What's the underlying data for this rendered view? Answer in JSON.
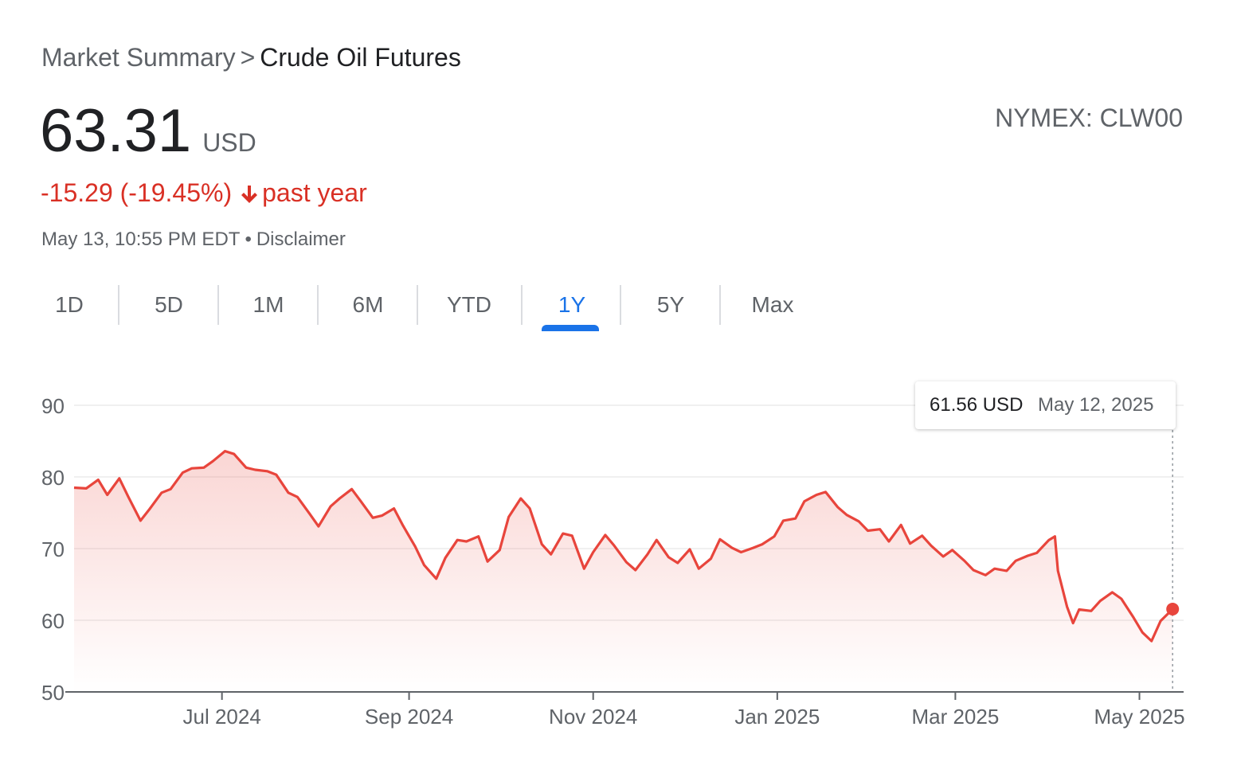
{
  "breadcrumb": {
    "root": "Market Summary",
    "separator": ">",
    "current": "Crude Oil Futures"
  },
  "quote": {
    "price": "63.31",
    "currency": "USD",
    "ticker": "NYMEX: CLW00",
    "change": "-15.29 (-19.45%)",
    "change_period": "past year",
    "change_direction_icon": "arrow-down-icon",
    "timestamp": "May 13, 10:55 PM EDT",
    "separator": "•",
    "disclaimer": "Disclaimer"
  },
  "tabs": [
    {
      "label": "1D",
      "active": false
    },
    {
      "label": "5D",
      "active": false
    },
    {
      "label": "1M",
      "active": false
    },
    {
      "label": "6M",
      "active": false
    },
    {
      "label": "YTD",
      "active": false
    },
    {
      "label": "1Y",
      "active": true
    },
    {
      "label": "5Y",
      "active": false
    },
    {
      "label": "Max",
      "active": false
    }
  ],
  "tooltip": {
    "value": "61.56 USD",
    "date": "May 12, 2025"
  },
  "colors": {
    "line": "#e8453c",
    "negative": "#d93025",
    "accent": "#1a73e8",
    "text_secondary": "#5f6368"
  },
  "chart_data": {
    "type": "area",
    "ylim": [
      50,
      90
    ],
    "yticks": [
      50,
      60,
      70,
      80,
      90
    ],
    "x_tick_labels": [
      "Jul 2024",
      "Sep 2024",
      "Nov 2024",
      "Jan 2025",
      "Mar 2025",
      "May 2025"
    ],
    "x_tick_dates": [
      "2024-07-01",
      "2024-09-01",
      "2024-11-01",
      "2025-01-01",
      "2025-03-01",
      "2025-05-01"
    ],
    "x_range": [
      "2024-05-13",
      "2025-05-13"
    ],
    "grid": true,
    "series": [
      {
        "points": [
          [
            "2024-05-13",
            78.5
          ],
          [
            "2024-05-17",
            78.4
          ],
          [
            "2024-05-21",
            79.6
          ],
          [
            "2024-05-24",
            77.5
          ],
          [
            "2024-05-28",
            79.8
          ],
          [
            "2024-05-31",
            77.2
          ],
          [
            "2024-06-04",
            73.9
          ],
          [
            "2024-06-07",
            75.5
          ],
          [
            "2024-06-11",
            77.8
          ],
          [
            "2024-06-14",
            78.3
          ],
          [
            "2024-06-18",
            80.6
          ],
          [
            "2024-06-21",
            81.2
          ],
          [
            "2024-06-25",
            81.3
          ],
          [
            "2024-06-28",
            82.2
          ],
          [
            "2024-07-02",
            83.6
          ],
          [
            "2024-07-05",
            83.2
          ],
          [
            "2024-07-09",
            81.3
          ],
          [
            "2024-07-12",
            81.0
          ],
          [
            "2024-07-16",
            80.8
          ],
          [
            "2024-07-19",
            80.3
          ],
          [
            "2024-07-23",
            77.8
          ],
          [
            "2024-07-26",
            77.2
          ],
          [
            "2024-07-30",
            74.9
          ],
          [
            "2024-08-02",
            73.1
          ],
          [
            "2024-08-06",
            75.9
          ],
          [
            "2024-08-09",
            77.0
          ],
          [
            "2024-08-13",
            78.3
          ],
          [
            "2024-08-16",
            76.6
          ],
          [
            "2024-08-20",
            74.3
          ],
          [
            "2024-08-23",
            74.6
          ],
          [
            "2024-08-27",
            75.6
          ],
          [
            "2024-08-30",
            73.2
          ],
          [
            "2024-09-03",
            70.3
          ],
          [
            "2024-09-06",
            67.7
          ],
          [
            "2024-09-10",
            65.8
          ],
          [
            "2024-09-13",
            68.7
          ],
          [
            "2024-09-17",
            71.2
          ],
          [
            "2024-09-20",
            71.0
          ],
          [
            "2024-09-24",
            71.7
          ],
          [
            "2024-09-27",
            68.2
          ],
          [
            "2024-10-01",
            69.8
          ],
          [
            "2024-10-04",
            74.4
          ],
          [
            "2024-10-08",
            77.0
          ],
          [
            "2024-10-11",
            75.6
          ],
          [
            "2024-10-15",
            70.6
          ],
          [
            "2024-10-18",
            69.2
          ],
          [
            "2024-10-22",
            72.1
          ],
          [
            "2024-10-25",
            71.8
          ],
          [
            "2024-10-29",
            67.2
          ],
          [
            "2024-11-01",
            69.5
          ],
          [
            "2024-11-05",
            71.9
          ],
          [
            "2024-11-08",
            70.4
          ],
          [
            "2024-11-12",
            68.1
          ],
          [
            "2024-11-15",
            67.0
          ],
          [
            "2024-11-19",
            69.2
          ],
          [
            "2024-11-22",
            71.2
          ],
          [
            "2024-11-26",
            68.8
          ],
          [
            "2024-11-29",
            68.0
          ],
          [
            "2024-12-03",
            69.9
          ],
          [
            "2024-12-06",
            67.2
          ],
          [
            "2024-12-10",
            68.6
          ],
          [
            "2024-12-13",
            71.3
          ],
          [
            "2024-12-17",
            70.1
          ],
          [
            "2024-12-20",
            69.5
          ],
          [
            "2024-12-24",
            70.1
          ],
          [
            "2024-12-27",
            70.6
          ],
          [
            "2024-12-31",
            71.7
          ],
          [
            "2025-01-03",
            73.9
          ],
          [
            "2025-01-07",
            74.2
          ],
          [
            "2025-01-10",
            76.6
          ],
          [
            "2025-01-14",
            77.5
          ],
          [
            "2025-01-17",
            77.9
          ],
          [
            "2025-01-21",
            75.8
          ],
          [
            "2025-01-24",
            74.7
          ],
          [
            "2025-01-28",
            73.8
          ],
          [
            "2025-01-31",
            72.5
          ],
          [
            "2025-02-04",
            72.7
          ],
          [
            "2025-02-07",
            71.0
          ],
          [
            "2025-02-11",
            73.3
          ],
          [
            "2025-02-14",
            70.7
          ],
          [
            "2025-02-18",
            71.8
          ],
          [
            "2025-02-21",
            70.4
          ],
          [
            "2025-02-25",
            68.9
          ],
          [
            "2025-02-28",
            69.8
          ],
          [
            "2025-03-04",
            68.3
          ],
          [
            "2025-03-07",
            67.0
          ],
          [
            "2025-03-11",
            66.3
          ],
          [
            "2025-03-14",
            67.2
          ],
          [
            "2025-03-18",
            66.9
          ],
          [
            "2025-03-21",
            68.3
          ],
          [
            "2025-03-25",
            69.0
          ],
          [
            "2025-03-28",
            69.4
          ],
          [
            "2025-04-01",
            71.2
          ],
          [
            "2025-04-03",
            71.7
          ],
          [
            "2025-04-04",
            66.9
          ],
          [
            "2025-04-07",
            61.9
          ],
          [
            "2025-04-09",
            59.6
          ],
          [
            "2025-04-11",
            61.5
          ],
          [
            "2025-04-15",
            61.3
          ],
          [
            "2025-04-18",
            62.7
          ],
          [
            "2025-04-22",
            63.9
          ],
          [
            "2025-04-25",
            63.0
          ],
          [
            "2025-04-29",
            60.4
          ],
          [
            "2025-05-02",
            58.3
          ],
          [
            "2025-05-05",
            57.1
          ],
          [
            "2025-05-08",
            59.9
          ],
          [
            "2025-05-12",
            61.56
          ]
        ]
      }
    ],
    "highlight": {
      "date": "2025-05-12",
      "value": 61.56
    }
  }
}
